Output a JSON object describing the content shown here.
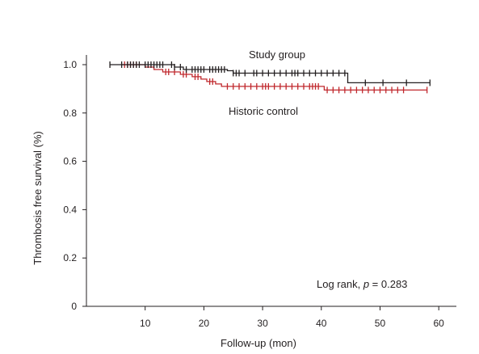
{
  "chart_data": {
    "type": "line",
    "subtype": "kaplan-meier",
    "xlabel": "Follow-up (mon)",
    "ylabel": "Thrombosis free survival (%)",
    "xlim": [
      0,
      63
    ],
    "ylim": [
      0,
      1.0
    ],
    "x_ticks": [
      10,
      20,
      30,
      40,
      50,
      60
    ],
    "y_ticks": [
      0,
      0.2,
      0.4,
      0.6,
      0.8,
      1.0
    ],
    "y_tick_labels": [
      "0",
      "0.2",
      "0.4",
      "0.6",
      "0.8",
      "1.0"
    ],
    "grid": false,
    "annotation": {
      "prefix": "Log rank, ",
      "p": "p",
      "suffix": " = 0.283"
    },
    "series": [
      {
        "name": "Study group",
        "color": "#231f20",
        "steps": [
          [
            4,
            1.0
          ],
          [
            15,
            0.99
          ],
          [
            16.5,
            0.98
          ],
          [
            24,
            0.975
          ],
          [
            25,
            0.965
          ],
          [
            44.5,
            0.925
          ],
          [
            58.5,
            0.925
          ]
        ],
        "censored": [
          4,
          6,
          7,
          7.5,
          8,
          8.5,
          9,
          10,
          10.5,
          11,
          11.5,
          12,
          12.5,
          13,
          14.5,
          15,
          16,
          17,
          18,
          18.5,
          19,
          19.5,
          20,
          21,
          21.5,
          22,
          22.5,
          23,
          23.5,
          25,
          25.5,
          26,
          27,
          28.5,
          29,
          30,
          31,
          32,
          33,
          34,
          35,
          35.5,
          36,
          37,
          38,
          39,
          40,
          41,
          42,
          43,
          44,
          47.5,
          50.5,
          54.5,
          58.5
        ]
      },
      {
        "name": "Historic control",
        "color": "#c0282d",
        "steps": [
          [
            6,
            1.0
          ],
          [
            10,
            0.99
          ],
          [
            11.5,
            0.98
          ],
          [
            13,
            0.97
          ],
          [
            16,
            0.96
          ],
          [
            18,
            0.95
          ],
          [
            19.5,
            0.94
          ],
          [
            20.5,
            0.93
          ],
          [
            22,
            0.92
          ],
          [
            23,
            0.91
          ],
          [
            40.5,
            0.895
          ],
          [
            58,
            0.895
          ]
        ],
        "censored": [
          6.5,
          7,
          7.5,
          8,
          8.5,
          13.5,
          14,
          15,
          16.5,
          17,
          18.5,
          19,
          21,
          21.5,
          24,
          25,
          26,
          27,
          28,
          29,
          30,
          30.5,
          31,
          32,
          33,
          34,
          35,
          36,
          37,
          38,
          38.5,
          39,
          39.5,
          41,
          42,
          43,
          44,
          45,
          46,
          47,
          48,
          49,
          50,
          51,
          52,
          53,
          54,
          58
        ]
      }
    ]
  }
}
